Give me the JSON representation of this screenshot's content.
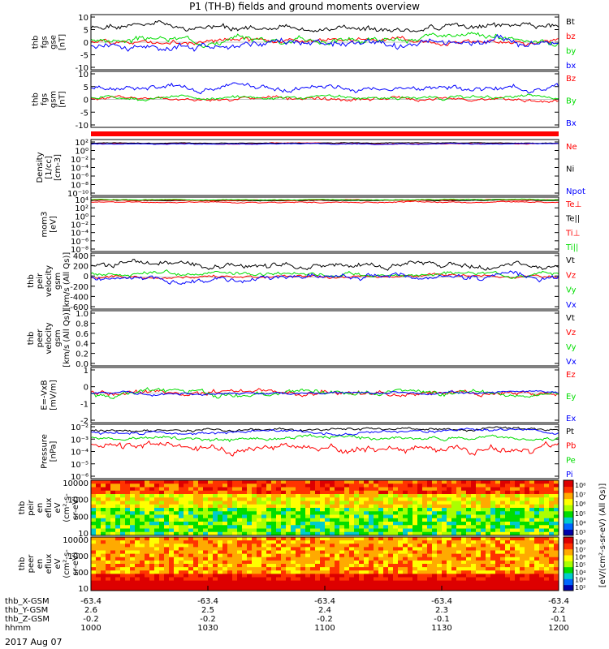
{
  "title": "P1 (TH-B) fields and ground moments overview",
  "date": "2017 Aug 07",
  "colors": {
    "black": "#000000",
    "red": "#ff0000",
    "green": "#00dd00",
    "blue": "#0000ff"
  },
  "chart_data": [
    {
      "type": "line",
      "id": "fgs_gse",
      "ylabel": [
        "thb",
        "fgs",
        "gse",
        "[nT]"
      ],
      "ylim": [
        -10,
        10
      ],
      "yticks": [
        "10",
        "5",
        "0",
        "-5",
        "-10"
      ],
      "series": [
        {
          "name": "Bt",
          "color": "#000000",
          "base": 5,
          "amp": 2.5,
          "seed": 1
        },
        {
          "name": "bz",
          "color": "#ff0000",
          "base": 0.5,
          "amp": 2,
          "seed": 2
        },
        {
          "name": "by",
          "color": "#00dd00",
          "base": 1,
          "amp": 2.5,
          "seed": 3
        },
        {
          "name": "bx",
          "color": "#0000ff",
          "base": -1,
          "amp": 3,
          "seed": 4
        }
      ]
    },
    {
      "type": "line",
      "id": "fgs_gsm",
      "ylabel": [
        "thb",
        "fgs",
        "gsm",
        "[nT]"
      ],
      "ylim": [
        -14,
        14
      ],
      "yticks": [
        "10",
        "5",
        "0",
        "-5",
        "-10"
      ],
      "series": [
        {
          "name": "Bz",
          "color": "#ff0000",
          "base": 0,
          "amp": 2,
          "seed": 5
        },
        {
          "name": "By",
          "color": "#00dd00",
          "base": 1,
          "amp": 2,
          "seed": 6
        },
        {
          "name": "Bx",
          "color": "#0000ff",
          "base": 6,
          "amp": 3,
          "seed": 7
        }
      ]
    },
    {
      "type": "line",
      "id": "density",
      "ylabel": [
        "Density",
        "[1/cc]",
        "[cm-3]"
      ],
      "log": true,
      "ylim": [
        -11,
        3
      ],
      "yticks": [
        "10²",
        "10⁰",
        "10⁻²",
        "10⁻⁴",
        "10⁻⁶",
        "10⁻⁸",
        "10⁻¹⁰"
      ],
      "series": [
        {
          "name": "Ne",
          "color": "#ff0000",
          "base": 2,
          "amp": 0.25,
          "seed": 8
        },
        {
          "name": "Ni",
          "color": "#000000",
          "base": 2.1,
          "amp": 0.2,
          "seed": 9
        },
        {
          "name": "Npot",
          "color": "#0000ff",
          "base": 1.9,
          "amp": 0.25,
          "seed": 10
        }
      ]
    },
    {
      "type": "line",
      "id": "temperature",
      "ylabel": [
        "mom3",
        "[eV]"
      ],
      "log": true,
      "ylim": [
        -9,
        4
      ],
      "yticks": [
        "10⁴",
        "10²",
        "10⁰",
        "10⁻²",
        "10⁻⁴",
        "10⁻⁶",
        "10⁻⁸"
      ],
      "series": [
        {
          "name": "Te⊥",
          "color": "#ff0000",
          "base": 2.8,
          "amp": 0.3,
          "seed": 11
        },
        {
          "name": "Te||",
          "color": "#000000",
          "base": 3.2,
          "amp": 0.2,
          "seed": 12
        },
        {
          "name": "Ti⊥",
          "color": "#ff0000",
          "base": 3.3,
          "amp": 0.2,
          "seed": 13
        },
        {
          "name": "Ti||",
          "color": "#00dd00",
          "base": 3.4,
          "amp": 0.2,
          "seed": 14
        }
      ]
    },
    {
      "type": "line",
      "id": "peir_velocity",
      "ylabel": [
        "thb",
        "peir",
        "velocity",
        "gsm",
        "[km/s (All Qs)]"
      ],
      "ylim": [
        -600,
        450
      ],
      "yticks": [
        "400",
        "200",
        "0",
        "-200",
        "-400",
        "-600"
      ],
      "series": [
        {
          "name": "Vt",
          "color": "#000000",
          "base": 230,
          "amp": 120,
          "seed": 15
        },
        {
          "name": "Vz",
          "color": "#ff0000",
          "base": 0,
          "amp": 60,
          "seed": 16
        },
        {
          "name": "Vy",
          "color": "#00dd00",
          "base": 60,
          "amp": 80,
          "seed": 17
        },
        {
          "name": "Vx",
          "color": "#0000ff",
          "base": -40,
          "amp": 120,
          "seed": 18
        }
      ]
    },
    {
      "type": "line",
      "id": "peer_velocity",
      "ylabel": [
        "thb",
        "peer",
        "velocity",
        "gsm",
        "[km/s (All Qs)]"
      ],
      "ylim": [
        0,
        1.05
      ],
      "yticks": [
        "1.0",
        "0.8",
        "0.6",
        "0.4",
        "0.2",
        "0.0"
      ],
      "series": [
        {
          "name": "Vt",
          "color": "#000000",
          "empty": true
        },
        {
          "name": "Vz",
          "color": "#ff0000",
          "empty": true
        },
        {
          "name": "Vy",
          "color": "#00dd00",
          "empty": true
        },
        {
          "name": "Vx",
          "color": "#0000ff",
          "empty": true
        }
      ]
    },
    {
      "type": "line",
      "id": "efield",
      "ylabel": [
        "E=-VxB",
        "[mV/m]"
      ],
      "ylim": [
        -2,
        1.7
      ],
      "yticks": [
        "1",
        "0",
        "-1",
        "-2"
      ],
      "series": [
        {
          "name": "Ez",
          "color": "#ff0000",
          "base": 0,
          "amp": 0.4,
          "seed": 19
        },
        {
          "name": "Ey",
          "color": "#00dd00",
          "base": 0,
          "amp": 0.4,
          "seed": 20
        },
        {
          "name": "Ex",
          "color": "#0000ff",
          "base": 0,
          "amp": 0.2,
          "seed": 21
        }
      ]
    },
    {
      "type": "line",
      "id": "pressure",
      "ylabel": [
        "Pressure",
        "[nPa]"
      ],
      "log": true,
      "ylim": [
        -6.3,
        -1.3
      ],
      "yticks": [
        "10⁻²",
        "10⁻³",
        "10⁻⁴",
        "10⁻⁵",
        "10⁻⁶"
      ],
      "series": [
        {
          "name": "Pt",
          "color": "#000000",
          "base": -1.8,
          "amp": 0.3,
          "seed": 22
        },
        {
          "name": "Pb",
          "color": "#ff0000",
          "base": -3.4,
          "amp": 0.8,
          "seed": 23
        },
        {
          "name": "Pe",
          "color": "#00dd00",
          "base": -2.6,
          "amp": 0.4,
          "seed": 24
        },
        {
          "name": "Pi",
          "color": "#0000ff",
          "base": -2.0,
          "amp": 0.3,
          "seed": 25
        }
      ]
    },
    {
      "type": "heatmap",
      "id": "peir_eflux",
      "ylabel": [
        "thb",
        "peir",
        "en",
        "eflux",
        "eV",
        "(cm²-s-",
        "sr-eV)"
      ],
      "yticks": [
        "10000",
        "1000",
        "100",
        "10"
      ],
      "colorbar_ticks": [
        "10⁸",
        "10⁷",
        "10⁶",
        "10⁵",
        "10⁴",
        "10³"
      ],
      "colorbar_label": "[eV/(cm²-s-sr-eV) (All Qs)]",
      "seed": 26
    },
    {
      "type": "heatmap",
      "id": "peer_eflux",
      "ylabel": [
        "thb",
        "peer",
        "en",
        "eflux",
        "eV",
        "(cm²-s-",
        "sr-eV)"
      ],
      "yticks": [
        "10000",
        "1000",
        "100",
        "10"
      ],
      "colorbar_ticks": [
        "10⁸",
        "10⁷",
        "10⁶",
        "10⁵",
        "10⁴",
        "10³",
        "10²"
      ],
      "colorbar_label": "[eV/(cm²-s-sr-eV) (All Qs)]",
      "seed": 27
    }
  ],
  "xaxis": {
    "rows": [
      {
        "label": "thb_X-GSM",
        "values": [
          "-63.4",
          "-63.4",
          "-63.4",
          "-63.4",
          "-63.4"
        ]
      },
      {
        "label": "thb_Y-GSM",
        "values": [
          "2.6",
          "2.5",
          "2.4",
          "2.3",
          "2.2"
        ]
      },
      {
        "label": "thb_Z-GSM",
        "values": [
          "-0.2",
          "-0.2",
          "-0.2",
          "-0.1",
          "-0.1"
        ]
      },
      {
        "label": "hhmm",
        "values": [
          "1000",
          "1030",
          "1100",
          "1130",
          "1200"
        ]
      }
    ]
  }
}
